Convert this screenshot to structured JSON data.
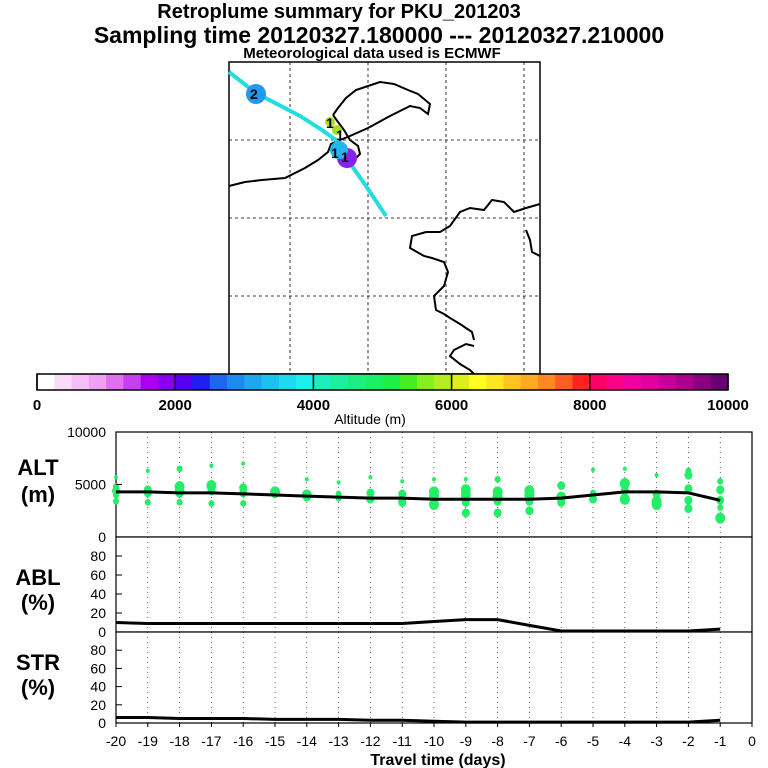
{
  "title": {
    "line1": "Retroplume summary for PKU_201203",
    "line2": "Sampling time   20120327.180000 --- 20120327.210000",
    "line3": "Meteorological data used is ECMWF"
  },
  "colors": {
    "trajectory": "#22dede",
    "point_green": "#22ee66",
    "black": "#000000"
  },
  "map": {
    "markers": [
      {
        "label": "1",
        "color": "#aadd22"
      },
      {
        "label": "1",
        "color": "#aadd22"
      },
      {
        "label": "1",
        "color": "#22b8ee"
      },
      {
        "label": "1",
        "color": "#8822ee"
      },
      {
        "label": "2",
        "color": "#2299ee"
      }
    ]
  },
  "colorbar": {
    "label": "Altitude (m)",
    "tick_labels": [
      "0",
      "2000",
      "4000",
      "6000",
      "8000",
      "10000"
    ],
    "colors": [
      "#ffffff",
      "#fadcfa",
      "#f5bff5",
      "#f0a0f0",
      "#e070ee",
      "#c840ee",
      "#aa00ee",
      "#8800ee",
      "#5500ee",
      "#1e1eee",
      "#1f66ee",
      "#1e8aee",
      "#1ea6ee",
      "#1ec0ee",
      "#1edaee",
      "#1eeeee",
      "#1eeebe",
      "#1eee9e",
      "#1eee82",
      "#1eee66",
      "#1eee4a",
      "#44ee22",
      "#88ee22",
      "#b4ee22",
      "#dcee22",
      "#ffff22",
      "#ffe622",
      "#ffc622",
      "#ffaa22",
      "#ff8822",
      "#ff5e22",
      "#ff2222",
      "#ff0066",
      "#ff0088",
      "#f000a0",
      "#e000a0",
      "#c8009a",
      "#aa008c",
      "#8a0080",
      "#680070"
    ]
  },
  "chart_data": [
    {
      "type": "scatter",
      "name": "ALT",
      "ylabel": "ALT\n(m)",
      "ylim": [
        0,
        10000
      ],
      "yticks": [
        "0",
        "5000",
        "10000"
      ],
      "xlim": [
        -20,
        0
      ],
      "x": [
        -20,
        -19,
        -18,
        -17,
        -16,
        -15,
        -14,
        -13,
        -12,
        -11,
        -10,
        -9,
        -8,
        -7,
        -6,
        -5,
        -4,
        -3,
        -2,
        -1
      ],
      "mean_line": [
        4300,
        4300,
        4200,
        4200,
        4100,
        4000,
        3900,
        3800,
        3700,
        3700,
        3600,
        3600,
        3600,
        3600,
        3700,
        4000,
        4300,
        4300,
        4200,
        3500
      ],
      "points": [
        {
          "x": -20,
          "ys": [
            5700,
            4800,
            4400,
            4000,
            3400
          ],
          "r": [
            2,
            3,
            4,
            3,
            3
          ]
        },
        {
          "x": -19,
          "ys": [
            6300,
            4500,
            4200,
            3300
          ],
          "r": [
            2,
            4,
            4,
            3
          ]
        },
        {
          "x": -18,
          "ys": [
            6500,
            4800,
            4300,
            3300
          ],
          "r": [
            3,
            5,
            5,
            3
          ]
        },
        {
          "x": -17,
          "ys": [
            6800,
            4900,
            4400,
            3200
          ],
          "r": [
            2,
            5,
            4,
            3
          ]
        },
        {
          "x": -16,
          "ys": [
            7000,
            4700,
            4200,
            3200
          ],
          "r": [
            2,
            4,
            4,
            3
          ]
        },
        {
          "x": -15,
          "ys": [
            4300,
            4100
          ],
          "r": [
            5,
            4
          ]
        },
        {
          "x": -14,
          "ys": [
            5500,
            4000,
            3800
          ],
          "r": [
            2,
            5,
            4
          ]
        },
        {
          "x": -13,
          "ys": [
            5200,
            4100,
            3700
          ],
          "r": [
            2,
            3,
            3
          ]
        },
        {
          "x": -12,
          "ys": [
            5700,
            4200,
            3600
          ],
          "r": [
            2,
            4,
            4
          ]
        },
        {
          "x": -11,
          "ys": [
            5300,
            4100,
            3500,
            3300
          ],
          "r": [
            2,
            4,
            4,
            4
          ]
        },
        {
          "x": -10,
          "ys": [
            5500,
            4300,
            3900,
            3100
          ],
          "r": [
            2,
            5,
            5,
            5
          ]
        },
        {
          "x": -9,
          "ys": [
            5500,
            4500,
            4000,
            3300,
            2300
          ],
          "r": [
            2,
            5,
            5,
            4,
            4
          ]
        },
        {
          "x": -8,
          "ys": [
            5500,
            4300,
            3800,
            3400,
            2300
          ],
          "r": [
            3,
            5,
            5,
            4,
            4
          ]
        },
        {
          "x": -7,
          "ys": [
            4400,
            4000,
            3400,
            2500
          ],
          "r": [
            5,
            5,
            4,
            4
          ]
        },
        {
          "x": -6,
          "ys": [
            4900,
            3800,
            3300
          ],
          "r": [
            4,
            5,
            4
          ]
        },
        {
          "x": -5,
          "ys": [
            6400,
            4200,
            3600
          ],
          "r": [
            2,
            3,
            4
          ]
        },
        {
          "x": -4,
          "ys": [
            6500,
            5100,
            4400,
            3600
          ],
          "r": [
            2,
            5,
            4,
            5
          ]
        },
        {
          "x": -3,
          "ys": [
            5900,
            4100,
            3400,
            3100
          ],
          "r": [
            2,
            4,
            5,
            5
          ]
        },
        {
          "x": -2,
          "ys": [
            6300,
            5900,
            4600,
            3500,
            2700
          ],
          "r": [
            3,
            4,
            4,
            4,
            4
          ]
        },
        {
          "x": -1,
          "ys": [
            5300,
            4500,
            3500,
            2800,
            1800
          ],
          "r": [
            3,
            4,
            4,
            3,
            5
          ]
        }
      ]
    },
    {
      "type": "line",
      "name": "ABL",
      "ylabel": "ABL\n(%)",
      "ylim": [
        0,
        100
      ],
      "yticks": [
        "0",
        "20",
        "40",
        "60",
        "80"
      ],
      "xlim": [
        -20,
        0
      ],
      "x": [
        -20,
        -19,
        -18,
        -17,
        -16,
        -15,
        -14,
        -13,
        -12,
        -11,
        -10,
        -9,
        -8,
        -7,
        -6,
        -5,
        -4,
        -3,
        -2,
        -1
      ],
      "values": [
        10,
        9,
        9,
        9,
        9,
        9,
        9,
        9,
        9,
        9,
        11,
        13,
        13,
        7,
        1,
        1,
        1,
        1,
        1,
        3
      ]
    },
    {
      "type": "line",
      "name": "STR",
      "ylabel": "STR\n(%)",
      "ylim": [
        0,
        100
      ],
      "yticks": [
        "0",
        "20",
        "40",
        "60",
        "80"
      ],
      "xlim": [
        -20,
        0
      ],
      "x": [
        -20,
        -19,
        -18,
        -17,
        -16,
        -15,
        -14,
        -13,
        -12,
        -11,
        -10,
        -9,
        -8,
        -7,
        -6,
        -5,
        -4,
        -3,
        -2,
        -1
      ],
      "values": [
        6,
        6,
        5,
        5,
        5,
        4,
        4,
        4,
        3,
        3,
        2,
        1,
        1,
        1,
        1,
        1,
        1,
        1,
        1,
        3
      ],
      "xlabel": "Travel time (days)",
      "xtick_labels": [
        "-20",
        "-19",
        "-18",
        "-17",
        "-16",
        "-15",
        "-14",
        "-13",
        "-12",
        "-11",
        "-10",
        "-9",
        "-8",
        "-7",
        "-6",
        "-5",
        "-4",
        "-3",
        "-2",
        "-1",
        "0"
      ]
    }
  ]
}
